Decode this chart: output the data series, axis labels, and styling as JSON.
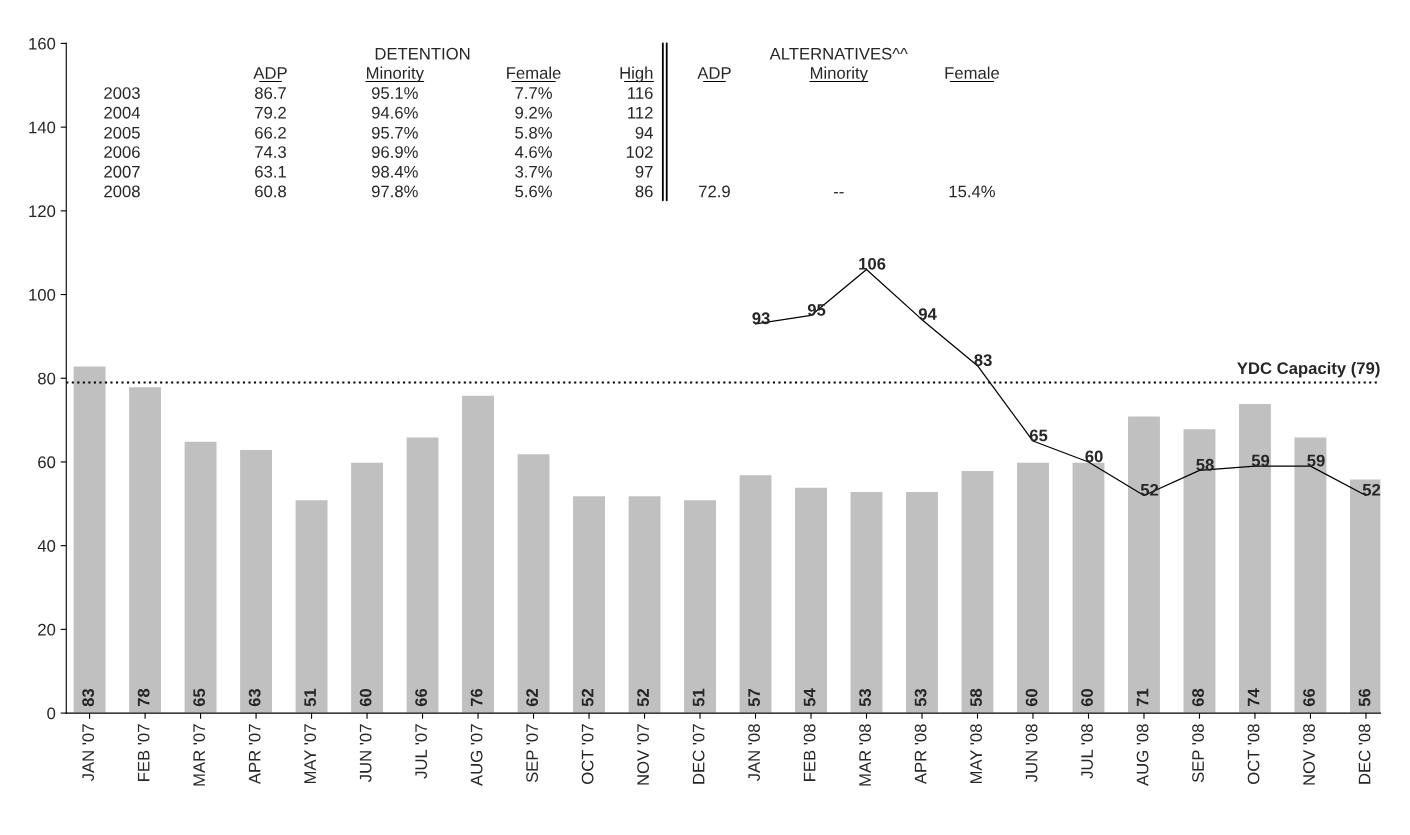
{
  "chart_data": {
    "type": "bar",
    "categories": [
      "JAN '07",
      "FEB '07",
      "MAR '07",
      "APR '07",
      "MAY '07",
      "JUN '07",
      "JUL '07",
      "AUG '07",
      "SEP '07",
      "OCT '07",
      "NOV '07",
      "DEC '07",
      "JAN '08",
      "FEB '08",
      "MAR '08",
      "APR '08",
      "MAY '08",
      "JUN '08",
      "JUL '08",
      "AUG '08",
      "SEP '08",
      "OCT '08",
      "NOV '08",
      "DEC '08"
    ],
    "series": [
      {
        "color": "#c0c0c0",
        "values": [
          83,
          78,
          65,
          63,
          51,
          60,
          66,
          76,
          62,
          52,
          52,
          51,
          57,
          54,
          53,
          53,
          58,
          60,
          60,
          71,
          68,
          74,
          66,
          56
        ],
        "value_labels": [
          "83",
          "78",
          "65",
          "63",
          "51",
          "60",
          "66",
          "76",
          "62",
          "52",
          "52",
          "51",
          "57",
          "54",
          "53",
          "53",
          "58",
          "60",
          "60",
          "71",
          "68",
          "74",
          "66",
          "56"
        ]
      },
      {
        "type": "line",
        "color": "#000000",
        "values": [
          null,
          null,
          null,
          null,
          null,
          null,
          null,
          null,
          null,
          null,
          null,
          null,
          93,
          95,
          106,
          94,
          83,
          65,
          60,
          52,
          58,
          59,
          59,
          52
        ],
        "value_labels": [
          null,
          null,
          null,
          null,
          null,
          null,
          null,
          null,
          null,
          null,
          null,
          null,
          "93",
          "95",
          "106",
          "94",
          "83",
          "65",
          "60",
          "52",
          "58",
          "59",
          "59",
          "52"
        ]
      }
    ],
    "ylim": [
      0,
      160
    ],
    "yticks": [
      0,
      20,
      40,
      60,
      80,
      100,
      120,
      140,
      160
    ],
    "grid": false,
    "marker": "none",
    "line_style": "solid",
    "ref_lines": [
      {
        "axis": "y",
        "value": 79,
        "label": "YDC Capacity (79)",
        "color": "#000000",
        "line_style": "dotted"
      }
    ],
    "annotations": [
      "DETENTION",
      "ALTERNATIVES^^",
      "ADP",
      "Minority",
      "Female",
      "High",
      "ADP",
      "Minority",
      "Female",
      "2003",
      "86.7",
      "95.1%",
      "7.7%",
      "116",
      "2004",
      "79.2",
      "94.6%",
      "9.2%",
      "112",
      "2005",
      "66.2",
      "95.7%",
      "5.8%",
      "94",
      "2006",
      "74.3",
      "96.9%",
      "4.6%",
      "102",
      "2007",
      "63.1",
      "98.4%",
      "3.7%",
      "97",
      "2008",
      "60.8",
      "97.8%",
      "5.6%",
      "86",
      "72.9",
      "--",
      "15.4%"
    ]
  }
}
